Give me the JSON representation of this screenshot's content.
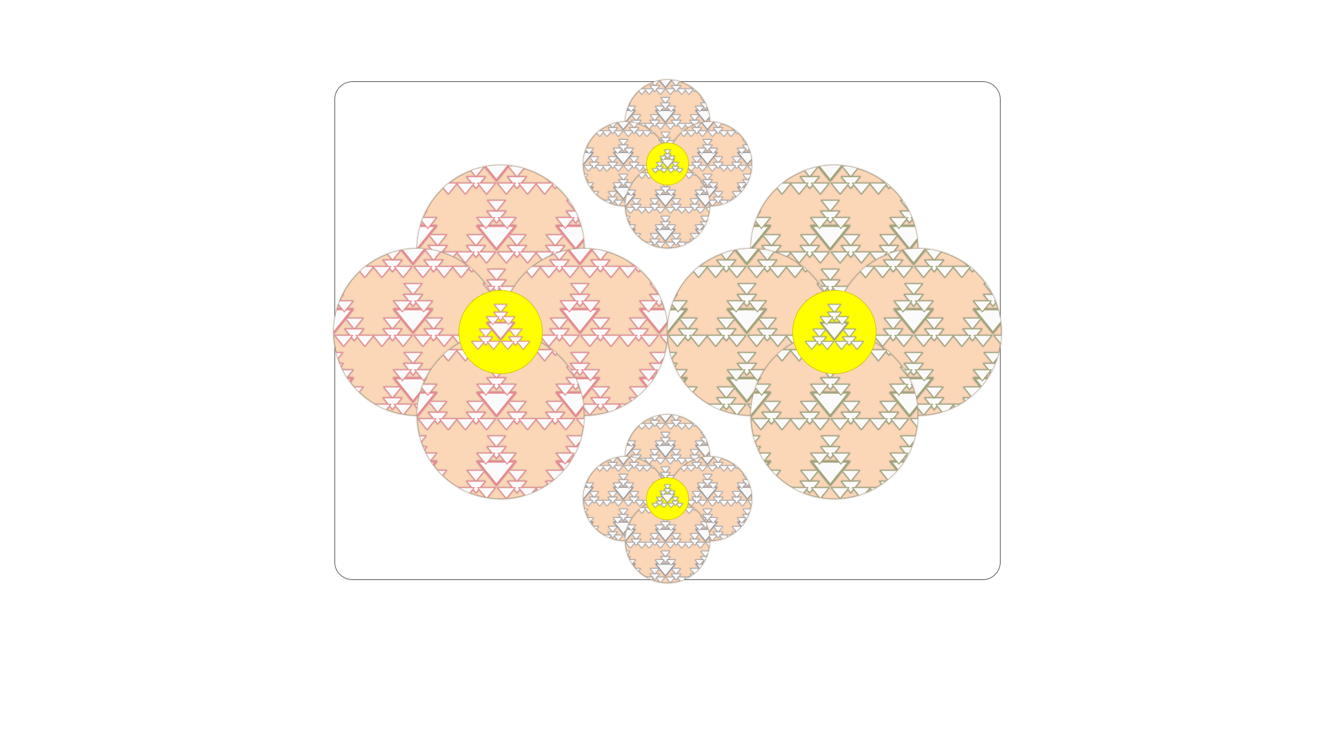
{
  "colors": {
    "background": "#ffffff",
    "frame_border": "#555555",
    "petal_fill": "#fbd7b7",
    "petal_stroke": "#b8a690",
    "center_fill": "#ffff00",
    "cutout_fill": "#ffffff",
    "shadow_pink": "#e88c90",
    "shadow_blue": "#8cb2e0",
    "shadow_olive": "#a3a57a",
    "shadow_cream": "#f5dfa0",
    "shadow_gray": "#9a9aa0"
  },
  "icons": {
    "flower": "sierpinski-flower-icon",
    "flower_center": "circle-center-icon"
  }
}
